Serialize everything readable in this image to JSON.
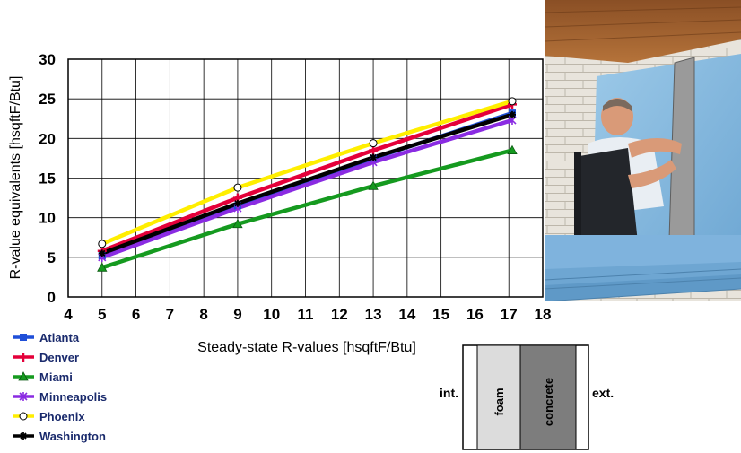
{
  "chart_data": {
    "type": "line",
    "xlabel": "Steady-state R-values [hsqftF/Btu]",
    "ylabel": "R-value equivalents [hsqftF/Btu]",
    "xlim": [
      4,
      18
    ],
    "ylim": [
      0,
      30
    ],
    "x_ticks": [
      4,
      5,
      6,
      7,
      8,
      9,
      10,
      11,
      12,
      13,
      14,
      15,
      16,
      17,
      18
    ],
    "y_ticks": [
      0,
      5,
      10,
      15,
      20,
      25,
      30
    ],
    "grid": true,
    "legend_position": "bottom-left",
    "x": [
      5,
      9,
      13,
      17.1
    ],
    "series": [
      {
        "name": "Atlanta",
        "color": "#1f4fd8",
        "marker": "square",
        "values": [
          5.2,
          11.5,
          17.5,
          23.2
        ]
      },
      {
        "name": "Denver",
        "color": "#e4003a",
        "marker": "plus",
        "values": [
          5.8,
          12.5,
          18.5,
          24.3
        ]
      },
      {
        "name": "Miami",
        "color": "#159a1f",
        "marker": "triangle",
        "values": [
          3.7,
          9.2,
          14.0,
          18.5
        ]
      },
      {
        "name": "Minneapolis",
        "color": "#8a2be2",
        "marker": "asterisk",
        "values": [
          5.0,
          11.2,
          17.0,
          22.3
        ]
      },
      {
        "name": "Phoenix",
        "color": "#ffee00",
        "marker": "circle",
        "values": [
          6.7,
          13.8,
          19.4,
          24.7
        ]
      },
      {
        "name": "Washington",
        "color": "#000000",
        "marker": "star",
        "values": [
          5.5,
          11.8,
          17.6,
          23.0
        ]
      }
    ]
  },
  "wall_diagram": {
    "interior_label": "int.",
    "exterior_label": "ext.",
    "layer1": "foam",
    "layer2": "concrete"
  },
  "photo": {
    "icon": "worker-installing-foam-insulation-photo"
  }
}
